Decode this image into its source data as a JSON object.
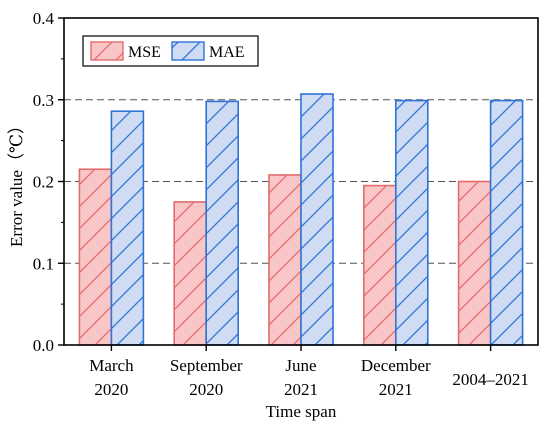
{
  "chart_data": {
    "type": "bar",
    "title": "",
    "xlabel": "Time span",
    "ylabel": "Error value（℃）",
    "categories": [
      [
        "March",
        "2020"
      ],
      [
        "September",
        "2020"
      ],
      [
        "June",
        "2021"
      ],
      [
        "December",
        "2021"
      ],
      [
        "2004–2021"
      ]
    ],
    "series": [
      {
        "name": "MSE",
        "values": [
          0.215,
          0.175,
          0.208,
          0.195,
          0.2
        ],
        "fill": "#f8c6c6",
        "stroke": "#e36b6b",
        "hatch": "#e36b6b"
      },
      {
        "name": "MAE",
        "values": [
          0.286,
          0.298,
          0.307,
          0.299,
          0.299
        ],
        "fill": "#cfdcf3",
        "stroke": "#2f73d8",
        "hatch": "#2f73d8"
      }
    ],
    "ylim": [
      0,
      0.4
    ],
    "yticks": [
      "0.0",
      "0.1",
      "0.2",
      "0.3",
      "0.4"
    ],
    "grid": true,
    "legend": "top-left"
  }
}
